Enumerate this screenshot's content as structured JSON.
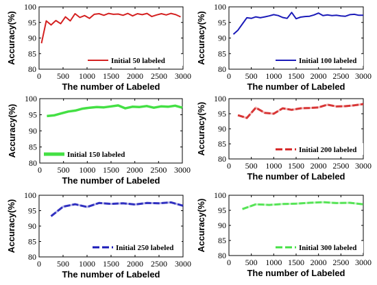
{
  "chart_data": [
    {
      "type": "line",
      "xlabel": "The number of Labeled",
      "ylabel": "Accuracy(%)",
      "xlim": [
        0,
        3000
      ],
      "ylim": [
        80,
        100
      ],
      "xticks": [
        0,
        500,
        1000,
        1500,
        2000,
        2500,
        3000
      ],
      "yticks": [
        80,
        85,
        90,
        95,
        100
      ],
      "legend_position": "bottom-right",
      "grid": false,
      "series": [
        {
          "name": "Initial 50 labeled",
          "color": "#d42020",
          "style": "solid",
          "x": [
            50,
            150,
            250,
            350,
            450,
            550,
            650,
            750,
            850,
            950,
            1050,
            1150,
            1250,
            1350,
            1450,
            1550,
            1650,
            1750,
            1850,
            1950,
            2050,
            2150,
            2250,
            2350,
            2450,
            2550,
            2650,
            2750,
            2850,
            2950
          ],
          "y": [
            88.3,
            95.5,
            94.2,
            95.6,
            94.6,
            96.8,
            95.5,
            97.8,
            96.6,
            97.2,
            96.3,
            97.6,
            97.8,
            97.3,
            97.9,
            97.6,
            97.7,
            97.3,
            97.9,
            97.1,
            97.8,
            97.5,
            97.9,
            96.9,
            97.4,
            97.8,
            97.4,
            97.9,
            97.5,
            96.8
          ]
        }
      ]
    },
    {
      "type": "line",
      "xlabel": "The number of Labeled",
      "ylabel": "Accuracy(%)",
      "xlim": [
        0,
        3000
      ],
      "ylim": [
        80,
        100
      ],
      "xticks": [
        0,
        500,
        1000,
        1500,
        2000,
        2500,
        3000
      ],
      "yticks": [
        80,
        85,
        90,
        95,
        100
      ],
      "legend_position": "bottom-right",
      "grid": false,
      "series": [
        {
          "name": "Initial 100 labeled",
          "color": "#1a1ab8",
          "style": "solid",
          "x": [
            100,
            200,
            300,
            400,
            500,
            600,
            700,
            800,
            900,
            1000,
            1100,
            1200,
            1300,
            1400,
            1500,
            1600,
            1700,
            1800,
            1900,
            2000,
            2100,
            2200,
            2300,
            2400,
            2500,
            2600,
            2700,
            2800,
            2900,
            3000
          ],
          "y": [
            91.2,
            92.5,
            94.5,
            96.5,
            96.3,
            96.8,
            96.5,
            96.8,
            97.1,
            97.5,
            97.2,
            96.6,
            96.3,
            98.2,
            96.2,
            96.7,
            96.9,
            97.0,
            97.4,
            98.0,
            97.2,
            97.4,
            97.2,
            97.3,
            97.1,
            97.0,
            97.5,
            97.6,
            97.3,
            97.3
          ]
        }
      ]
    },
    {
      "type": "line",
      "xlabel": "The number of Labeled",
      "ylabel": "Accuracy(%)",
      "xlim": [
        0,
        3000
      ],
      "ylim": [
        80,
        100
      ],
      "xticks": [
        0,
        500,
        1000,
        1500,
        2000,
        2500,
        3000
      ],
      "yticks": [
        80,
        85,
        90,
        95,
        100
      ],
      "legend_position": "bottom-left",
      "grid": false,
      "series": [
        {
          "name": "Initial 150 labeled",
          "color": "#44e044",
          "style": "thick",
          "x": [
            150,
            300,
            450,
            600,
            750,
            900,
            1050,
            1200,
            1350,
            1500,
            1650,
            1800,
            1950,
            2100,
            2250,
            2400,
            2550,
            2700,
            2850,
            3000
          ],
          "y": [
            94.6,
            94.8,
            95.4,
            96.0,
            96.3,
            96.9,
            97.2,
            97.4,
            97.3,
            97.6,
            97.9,
            97.0,
            97.5,
            97.4,
            97.7,
            97.2,
            97.6,
            97.5,
            97.8,
            97.2
          ]
        }
      ]
    },
    {
      "type": "line",
      "xlabel": "The number of Labeled",
      "ylabel": "Accuracy(%)",
      "xlim": [
        0,
        3000
      ],
      "ylim": [
        80,
        100
      ],
      "xticks": [
        0,
        500,
        1000,
        1500,
        2000,
        2500,
        3000
      ],
      "yticks": [
        80,
        85,
        90,
        95,
        100
      ],
      "legend_position": "bottom-right",
      "grid": false,
      "series": [
        {
          "name": "Initial 200 labeled",
          "color": "#d42020",
          "style": "dashed",
          "x": [
            200,
            400,
            600,
            800,
            1000,
            1200,
            1400,
            1600,
            1800,
            2000,
            2200,
            2400,
            2600,
            2800,
            3000
          ],
          "y": [
            94.5,
            93.6,
            97.0,
            95.3,
            95.0,
            96.8,
            96.3,
            96.8,
            96.9,
            97.1,
            98.0,
            97.4,
            97.5,
            97.8,
            98.2
          ]
        }
      ]
    },
    {
      "type": "line",
      "xlabel": "The number of Labeled",
      "ylabel": "Accuracy(%)",
      "xlim": [
        0,
        3000
      ],
      "ylim": [
        80,
        100
      ],
      "xticks": [
        0,
        500,
        1000,
        1500,
        2000,
        2500,
        3000
      ],
      "yticks": [
        80,
        85,
        90,
        95,
        100
      ],
      "legend_position": "bottom-right",
      "grid": false,
      "series": [
        {
          "name": "Initial 250 labeled",
          "color": "#1a1ab8",
          "style": "dashed",
          "x": [
            250,
            500,
            750,
            1000,
            1250,
            1500,
            1750,
            2000,
            2250,
            2500,
            2750,
            3000
          ],
          "y": [
            93.2,
            96.3,
            97.1,
            96.2,
            97.5,
            97.2,
            97.4,
            97.0,
            97.5,
            97.4,
            97.7,
            96.6
          ]
        }
      ]
    },
    {
      "type": "line",
      "xlabel": "The number of Labeled",
      "ylabel": "Accuracy(%)",
      "xlim": [
        0,
        3000
      ],
      "ylim": [
        80,
        100
      ],
      "xticks": [
        0,
        500,
        1000,
        1500,
        2000,
        2500,
        3000
      ],
      "yticks": [
        80,
        85,
        90,
        95,
        100
      ],
      "legend_position": "bottom-right",
      "grid": false,
      "series": [
        {
          "name": "Initial 300 labeled",
          "color": "#44e044",
          "style": "dashed",
          "x": [
            300,
            600,
            900,
            1200,
            1500,
            1800,
            2100,
            2400,
            2700,
            3000
          ],
          "y": [
            95.4,
            97.0,
            96.8,
            97.1,
            97.2,
            97.5,
            97.7,
            97.4,
            97.5,
            97.0
          ]
        }
      ]
    }
  ]
}
